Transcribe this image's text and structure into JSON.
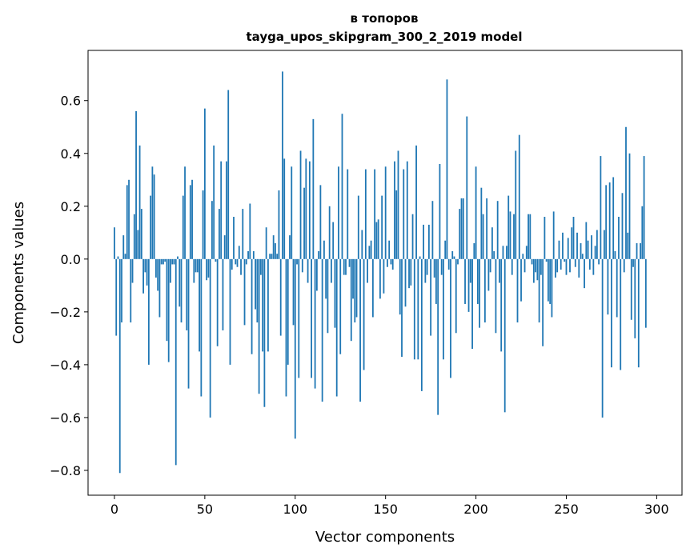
{
  "chart_data": {
    "type": "bar",
    "title": "в топоров",
    "subtitle": "tayga_upos_skipgram_300_2_2019 model",
    "xlabel": "Vector components",
    "ylabel": "Components values",
    "xlim": [
      -14.6,
      314
    ],
    "ylim": [
      -0.894,
      0.79
    ],
    "xticks": [
      0,
      50,
      100,
      150,
      200,
      250,
      300
    ],
    "xtick_labels": [
      "0",
      "50",
      "100",
      "150",
      "200",
      "250",
      "300"
    ],
    "yticks": [
      -0.8,
      -0.6,
      -0.4,
      -0.2,
      0.0,
      0.2,
      0.4,
      0.6
    ],
    "ytick_labels": [
      "−0.8",
      "−0.6",
      "−0.4",
      "−0.2",
      "0.0",
      "0.2",
      "0.4",
      "0.6"
    ],
    "color": "#1f77b4",
    "grid": false,
    "values": [
      0.12,
      -0.29,
      0.01,
      -0.81,
      -0.24,
      0.09,
      0.02,
      0.28,
      0.3,
      -0.24,
      -0.09,
      0.17,
      0.56,
      0.11,
      0.43,
      0.19,
      -0.13,
      -0.05,
      -0.1,
      -0.4,
      0.24,
      0.35,
      0.32,
      -0.07,
      -0.12,
      -0.22,
      -0.02,
      -0.02,
      -0.01,
      -0.31,
      -0.39,
      -0.09,
      -0.02,
      -0.02,
      -0.78,
      0.01,
      -0.18,
      -0.24,
      0.24,
      0.35,
      -0.27,
      -0.49,
      0.28,
      0.3,
      -0.09,
      -0.05,
      -0.05,
      -0.35,
      -0.52,
      0.26,
      0.57,
      -0.08,
      -0.07,
      -0.6,
      0.22,
      0.43,
      -0.01,
      -0.33,
      0.19,
      0.37,
      -0.27,
      0.09,
      0.37,
      0.64,
      -0.4,
      -0.04,
      0.16,
      -0.02,
      -0.03,
      0.05,
      -0.06,
      0.19,
      -0.25,
      -0.02,
      0.03,
      0.21,
      -0.36,
      0.03,
      -0.19,
      -0.24,
      -0.51,
      -0.06,
      -0.35,
      -0.56,
      0.12,
      -0.35,
      0.02,
      0.02,
      0.09,
      0.06,
      0.02,
      0.26,
      -0.29,
      0.71,
      0.38,
      -0.52,
      -0.4,
      0.09,
      0.35,
      -0.25,
      -0.68,
      -0.02,
      -0.45,
      0.41,
      -0.05,
      0.27,
      0.38,
      -0.09,
      0.37,
      -0.45,
      0.53,
      -0.49,
      -0.12,
      0.03,
      0.28,
      -0.54,
      0.07,
      -0.15,
      -0.28,
      0.2,
      -0.09,
      0.14,
      -0.26,
      -0.52,
      0.35,
      -0.36,
      0.55,
      -0.06,
      -0.06,
      0.34,
      -0.03,
      -0.31,
      -0.15,
      -0.24,
      -0.22,
      0.24,
      -0.54,
      0.11,
      -0.42,
      0.34,
      -0.09,
      0.05,
      0.07,
      -0.22,
      0.34,
      0.14,
      0.15,
      -0.15,
      0.24,
      -0.13,
      0.35,
      -0.03,
      0.07,
      -0.02,
      -0.04,
      0.37,
      0.26,
      0.41,
      -0.21,
      -0.37,
      0.34,
      -0.18,
      0.37,
      -0.11,
      -0.1,
      0.17,
      -0.38,
      0.43,
      -0.38,
      0.01,
      -0.5,
      0.13,
      -0.09,
      -0.06,
      0.13,
      -0.29,
      0.22,
      -0.07,
      -0.17,
      -0.59,
      0.36,
      -0.06,
      -0.38,
      0.07,
      0.68,
      -0.04,
      -0.45,
      0.03,
      0.01,
      -0.28,
      -0.02,
      0.19,
      0.23,
      0.23,
      -0.17,
      0.54,
      -0.2,
      -0.09,
      -0.34,
      0.06,
      0.35,
      -0.17,
      -0.26,
      0.27,
      0.17,
      -0.24,
      0.23,
      -0.12,
      -0.05,
      0.12,
      0.03,
      -0.28,
      0.22,
      -0.09,
      -0.35,
      0.05,
      -0.58,
      0.05,
      0.24,
      0.18,
      -0.06,
      0.17,
      0.41,
      -0.24,
      0.47,
      -0.16,
      0.02,
      -0.05,
      0.05,
      0.17,
      0.17,
      -0.02,
      -0.09,
      -0.05,
      -0.08,
      -0.24,
      -0.06,
      -0.33,
      0.16,
      -0.01,
      -0.16,
      -0.17,
      -0.22,
      0.18,
      -0.07,
      -0.05,
      0.07,
      -0.04,
      0.1,
      -0.01,
      -0.06,
      0.08,
      -0.05,
      0.12,
      0.16,
      -0.03,
      0.1,
      -0.07,
      0.06,
      0.02,
      -0.11,
      0.14,
      0.07,
      -0.04,
      0.09,
      -0.06,
      0.05,
      0.11,
      -0.02,
      0.39,
      -0.6,
      0.11,
      0.28,
      -0.21,
      0.29,
      -0.41,
      0.31,
      0.03,
      -0.22,
      0.16,
      -0.42,
      0.25,
      -0.05,
      0.5,
      0.1,
      0.4,
      -0.23,
      -0.03,
      -0.3,
      0.06,
      -0.41,
      0.06,
      0.2,
      0.39,
      -0.26
    ]
  }
}
